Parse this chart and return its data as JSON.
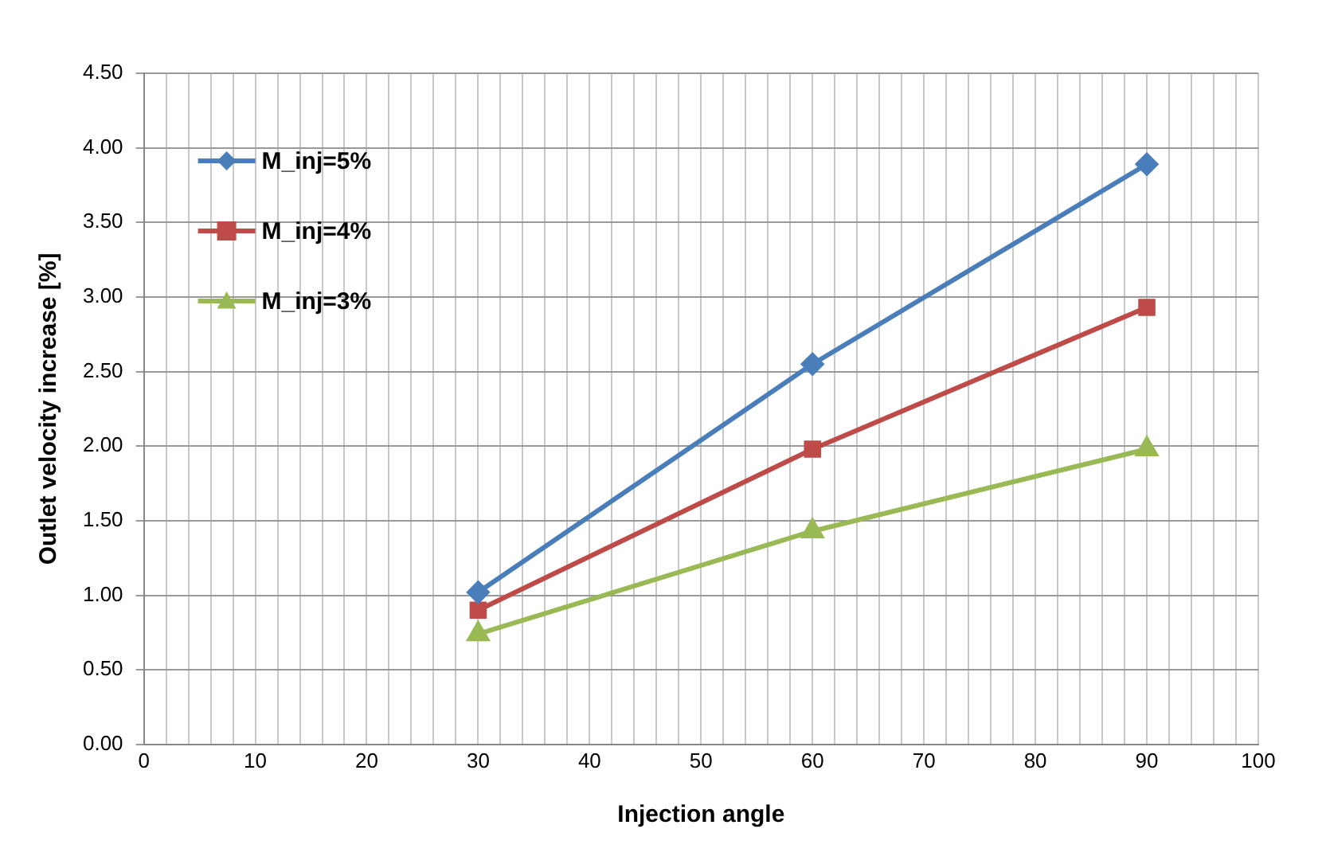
{
  "chart_data": {
    "type": "line",
    "xlabel": "Injection angle",
    "ylabel": "Outlet velocity increase [%]",
    "x": [
      30,
      60,
      90
    ],
    "series": [
      {
        "name": "M_inj=5%",
        "color": "#4a7ebb",
        "marker": "diamond",
        "values": [
          1.02,
          2.55,
          3.89
        ]
      },
      {
        "name": "M_inj=4%",
        "color": "#be4b48",
        "marker": "square",
        "values": [
          0.9,
          1.98,
          2.93
        ]
      },
      {
        "name": "M_inj=3%",
        "color": "#98b954",
        "marker": "triangle",
        "values": [
          0.74,
          1.43,
          1.98
        ]
      }
    ],
    "xlim": [
      0,
      100
    ],
    "xticks": [
      0,
      {
        "value": 2,
        "label": null
      },
      {
        "value": 4,
        "label": null
      },
      {
        "value": 6,
        "label": null
      },
      {
        "value": 8,
        "label": null
      },
      10,
      {
        "value": 12,
        "label": null
      },
      {
        "value": 14,
        "label": null
      },
      {
        "value": 16,
        "label": null
      },
      {
        "value": 18,
        "label": null
      },
      20,
      {
        "value": 22,
        "label": null
      },
      {
        "value": 24,
        "label": null
      },
      {
        "value": 26,
        "label": null
      },
      {
        "value": 28,
        "label": null
      },
      30,
      {
        "value": 32,
        "label": null
      },
      {
        "value": 34,
        "label": null
      },
      {
        "value": 36,
        "label": null
      },
      {
        "value": 38,
        "label": null
      },
      40,
      {
        "value": 42,
        "label": null
      },
      {
        "value": 44,
        "label": null
      },
      {
        "value": 46,
        "label": null
      },
      {
        "value": 48,
        "label": null
      },
      50,
      {
        "value": 52,
        "label": null
      },
      {
        "value": 54,
        "label": null
      },
      {
        "value": 56,
        "label": null
      },
      {
        "value": 58,
        "label": null
      },
      60,
      {
        "value": 62,
        "label": null
      },
      {
        "value": 64,
        "label": null
      },
      {
        "value": 66,
        "label": null
      },
      {
        "value": 68,
        "label": null
      },
      70,
      {
        "value": 72,
        "label": null
      },
      {
        "value": 74,
        "label": null
      },
      {
        "value": 76,
        "label": null
      },
      {
        "value": 78,
        "label": null
      },
      80,
      {
        "value": 82,
        "label": null
      },
      {
        "value": 84,
        "label": null
      },
      {
        "value": 86,
        "label": null
      },
      {
        "value": 88,
        "label": null
      },
      90,
      {
        "value": 92,
        "label": null
      },
      {
        "value": 94,
        "label": null
      },
      {
        "value": 96,
        "label": null
      },
      {
        "value": 98,
        "label": null
      },
      100
    ],
    "ylim": [
      0,
      4.5
    ],
    "yticks": [
      {
        "value": 0,
        "label": "0.00"
      },
      {
        "value": 0.5,
        "label": "0.50"
      },
      {
        "value": 1,
        "label": "1.00"
      },
      {
        "value": 1.5,
        "label": "1.50"
      },
      {
        "value": 2,
        "label": "2.00"
      },
      {
        "value": 2.5,
        "label": "2.50"
      },
      {
        "value": 3,
        "label": "3.00"
      },
      {
        "value": 3.5,
        "label": "3.50"
      },
      {
        "value": 4,
        "label": "4.00"
      },
      {
        "value": 4.5,
        "label": "4.50"
      }
    ],
    "grid": true,
    "legend": "top left",
    "line_style": "solid"
  }
}
